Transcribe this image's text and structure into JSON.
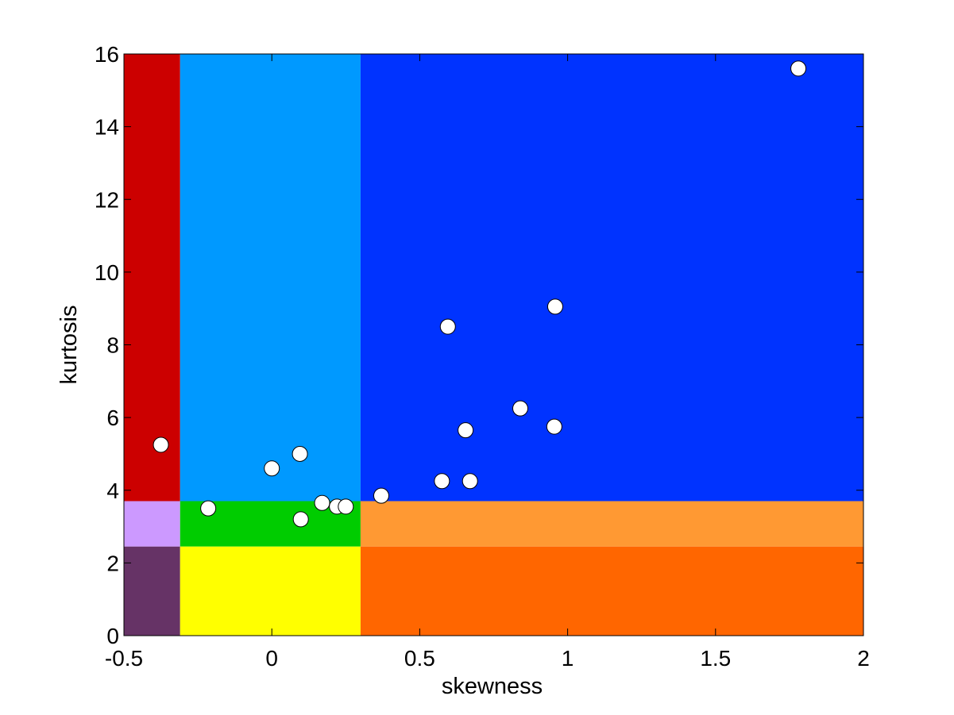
{
  "chart_data": {
    "type": "scatter",
    "title": "",
    "xlabel": "skewness",
    "ylabel": "kurtosis",
    "xlim": [
      -0.5,
      2
    ],
    "ylim": [
      0,
      16
    ],
    "grid": false,
    "x_ticks": [
      -0.5,
      0,
      0.5,
      1,
      1.5,
      2
    ],
    "x_tick_labels": [
      "-0.5",
      "0",
      "0.5",
      "1",
      "1.5",
      "2"
    ],
    "y_ticks": [
      0,
      2,
      4,
      6,
      8,
      10,
      12,
      14,
      16
    ],
    "y_tick_labels": [
      "0",
      "2",
      "4",
      "6",
      "8",
      "10",
      "12",
      "14",
      "16"
    ],
    "regions": [
      {
        "x": [
          -0.5,
          -0.31
        ],
        "y": [
          3.7,
          16
        ],
        "color": "#cc0000"
      },
      {
        "x": [
          -0.31,
          0.3
        ],
        "y": [
          3.7,
          16
        ],
        "color": "#0099ff"
      },
      {
        "x": [
          0.3,
          2
        ],
        "y": [
          3.7,
          16
        ],
        "color": "#0033ff"
      },
      {
        "x": [
          -0.5,
          -0.31
        ],
        "y": [
          2.45,
          3.7
        ],
        "color": "#cc99ff"
      },
      {
        "x": [
          -0.31,
          0.3
        ],
        "y": [
          2.45,
          3.7
        ],
        "color": "#00cc00"
      },
      {
        "x": [
          0.3,
          2
        ],
        "y": [
          2.45,
          3.7
        ],
        "color": "#ff9933"
      },
      {
        "x": [
          -0.5,
          -0.31
        ],
        "y": [
          0,
          2.45
        ],
        "color": "#663366"
      },
      {
        "x": [
          -0.31,
          0.3
        ],
        "y": [
          0,
          2.45
        ],
        "color": "#ffff00"
      },
      {
        "x": [
          0.3,
          2
        ],
        "y": [
          0,
          2.45
        ],
        "color": "#ff6600"
      }
    ],
    "points": [
      {
        "x": -0.375,
        "y": 5.25
      },
      {
        "x": -0.215,
        "y": 3.5
      },
      {
        "x": 0.0,
        "y": 4.6
      },
      {
        "x": 0.095,
        "y": 5.0
      },
      {
        "x": 0.098,
        "y": 3.2
      },
      {
        "x": 0.17,
        "y": 3.65
      },
      {
        "x": 0.22,
        "y": 3.55
      },
      {
        "x": 0.25,
        "y": 3.55
      },
      {
        "x": 0.37,
        "y": 3.85
      },
      {
        "x": 0.575,
        "y": 4.25
      },
      {
        "x": 0.595,
        "y": 8.5
      },
      {
        "x": 0.655,
        "y": 5.65
      },
      {
        "x": 0.67,
        "y": 4.25
      },
      {
        "x": 0.84,
        "y": 6.25
      },
      {
        "x": 0.955,
        "y": 5.75
      },
      {
        "x": 0.958,
        "y": 9.05
      },
      {
        "x": 1.78,
        "y": 15.6
      }
    ],
    "marker_color": "#ffffff",
    "marker_edge_color": "#000000"
  }
}
